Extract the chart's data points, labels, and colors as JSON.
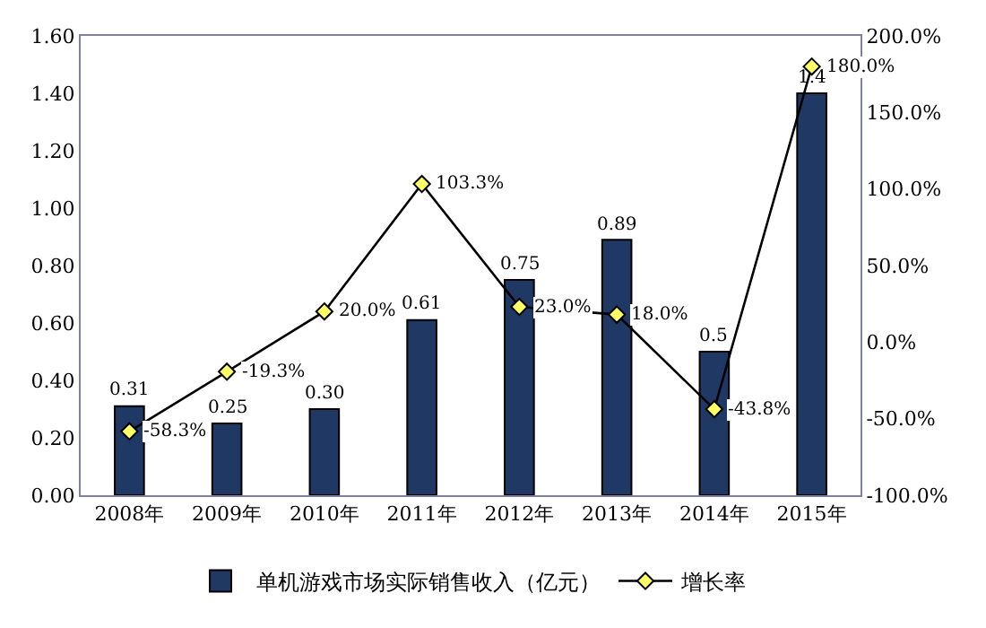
{
  "chart_data": {
    "type": "bar",
    "categories": [
      "2008年",
      "2009年",
      "2010年",
      "2011年",
      "2012年",
      "2013年",
      "2014年",
      "2015年"
    ],
    "series": [
      {
        "name": "单机游戏市场实际销售收入（亿元）",
        "color": "#1f3864",
        "values": [
          0.31,
          0.25,
          0.3,
          0.61,
          0.75,
          0.89,
          0.5,
          1.4
        ],
        "value_labels": [
          "0.31",
          "0.25",
          "0.30",
          "0.61",
          "0.75",
          "0.89",
          "0.5",
          "1.4"
        ]
      },
      {
        "name": "增长率",
        "type": "line",
        "axis": "y2",
        "color": "#000000",
        "values": [
          -58.3,
          -19.3,
          20.0,
          103.3,
          23.0,
          18.0,
          -43.8,
          180.0
        ],
        "value_labels": [
          "-58.3%",
          "-19.3%",
          "20.0%",
          "103.3%",
          "23.0%",
          "18.0%",
          "-43.8%",
          "180.0%"
        ]
      }
    ],
    "ylim": [
      0,
      1.6
    ],
    "yticks": [
      {
        "value": 0,
        "label": "0.00"
      },
      {
        "value": 0.2,
        "label": "0.20"
      },
      {
        "value": 0.4,
        "label": "0.40"
      },
      {
        "value": 0.6,
        "label": "0.60"
      },
      {
        "value": 0.8,
        "label": "0.80"
      },
      {
        "value": 1.0,
        "label": "1.00"
      },
      {
        "value": 1.2,
        "label": "1.20"
      },
      {
        "value": 1.4,
        "label": "1.40"
      },
      {
        "value": 1.6,
        "label": "1.60"
      }
    ],
    "y2lim": [
      -100,
      200
    ],
    "y2ticks": [
      {
        "value": -100,
        "label": "-100.0%"
      },
      {
        "value": -50,
        "label": "-50.0%"
      },
      {
        "value": 0,
        "label": "0.0%"
      },
      {
        "value": 50,
        "label": "50.0%"
      },
      {
        "value": 100,
        "label": "100.0%"
      },
      {
        "value": 150,
        "label": "150.0%"
      },
      {
        "value": 200,
        "label": "200.0%"
      }
    ],
    "marker": "diamond",
    "legend": "bottom"
  }
}
